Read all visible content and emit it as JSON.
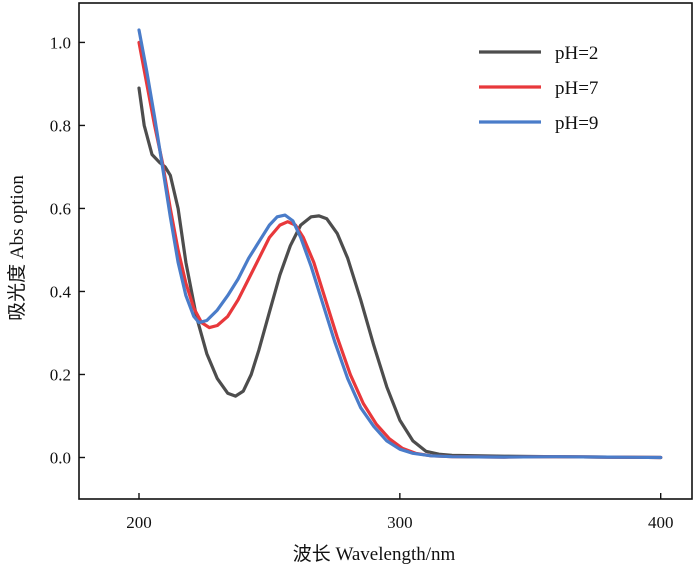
{
  "chart_data": {
    "type": "line",
    "xlabel": "波长 Wavelength/nm",
    "ylabel": "吸光度 Abs option",
    "xlim": [
      177,
      412
    ],
    "ylim": [
      -0.1,
      1.095
    ],
    "xticks": [
      200,
      300,
      400
    ],
    "xtick_labels": [
      "200",
      "300",
      "400"
    ],
    "yticks": [
      0.0,
      0.2,
      0.4,
      0.6,
      0.8,
      1.0
    ],
    "ytick_labels": [
      "0.0",
      "0.2",
      "0.4",
      "0.6",
      "0.8",
      "1.0"
    ],
    "grid": false,
    "legend_position": "top-right",
    "series": [
      {
        "name": "pH=2",
        "color": "#4d4d4d",
        "points": [
          [
            200,
            0.89
          ],
          [
            202,
            0.8
          ],
          [
            205,
            0.73
          ],
          [
            208,
            0.71
          ],
          [
            210,
            0.7
          ],
          [
            212,
            0.68
          ],
          [
            215,
            0.6
          ],
          [
            218,
            0.47
          ],
          [
            222,
            0.34
          ],
          [
            226,
            0.25
          ],
          [
            230,
            0.19
          ],
          [
            234,
            0.155
          ],
          [
            237,
            0.148
          ],
          [
            240,
            0.16
          ],
          [
            243,
            0.2
          ],
          [
            246,
            0.26
          ],
          [
            250,
            0.35
          ],
          [
            254,
            0.44
          ],
          [
            258,
            0.51
          ],
          [
            262,
            0.56
          ],
          [
            266,
            0.58
          ],
          [
            269,
            0.582
          ],
          [
            272,
            0.575
          ],
          [
            276,
            0.54
          ],
          [
            280,
            0.48
          ],
          [
            285,
            0.38
          ],
          [
            290,
            0.27
          ],
          [
            295,
            0.17
          ],
          [
            300,
            0.09
          ],
          [
            305,
            0.04
          ],
          [
            310,
            0.015
          ],
          [
            315,
            0.008
          ],
          [
            320,
            0.005
          ],
          [
            340,
            0.003
          ],
          [
            360,
            0.002
          ],
          [
            380,
            0.001
          ],
          [
            400,
            0.0
          ]
        ]
      },
      {
        "name": "pH=7",
        "color": "#e8383b",
        "points": [
          [
            200,
            1.0
          ],
          [
            203,
            0.9
          ],
          [
            206,
            0.8
          ],
          [
            209,
            0.71
          ],
          [
            212,
            0.6
          ],
          [
            215,
            0.5
          ],
          [
            218,
            0.42
          ],
          [
            221,
            0.36
          ],
          [
            224,
            0.325
          ],
          [
            227,
            0.313
          ],
          [
            230,
            0.318
          ],
          [
            234,
            0.34
          ],
          [
            238,
            0.38
          ],
          [
            242,
            0.43
          ],
          [
            246,
            0.48
          ],
          [
            250,
            0.53
          ],
          [
            254,
            0.56
          ],
          [
            257,
            0.568
          ],
          [
            260,
            0.56
          ],
          [
            263,
            0.53
          ],
          [
            267,
            0.47
          ],
          [
            271,
            0.39
          ],
          [
            276,
            0.29
          ],
          [
            281,
            0.2
          ],
          [
            286,
            0.13
          ],
          [
            291,
            0.08
          ],
          [
            296,
            0.045
          ],
          [
            301,
            0.022
          ],
          [
            306,
            0.01
          ],
          [
            312,
            0.004
          ],
          [
            320,
            0.002
          ],
          [
            340,
            0.001
          ],
          [
            360,
            0.002
          ],
          [
            380,
            0.001
          ],
          [
            400,
            0.0
          ]
        ]
      },
      {
        "name": "pH=9",
        "color": "#4a7cc9",
        "points": [
          [
            200,
            1.03
          ],
          [
            203,
            0.93
          ],
          [
            206,
            0.82
          ],
          [
            209,
            0.7
          ],
          [
            212,
            0.58
          ],
          [
            215,
            0.47
          ],
          [
            218,
            0.39
          ],
          [
            221,
            0.34
          ],
          [
            223,
            0.325
          ],
          [
            226,
            0.33
          ],
          [
            230,
            0.355
          ],
          [
            234,
            0.39
          ],
          [
            238,
            0.43
          ],
          [
            242,
            0.48
          ],
          [
            246,
            0.52
          ],
          [
            250,
            0.56
          ],
          [
            253,
            0.58
          ],
          [
            256,
            0.584
          ],
          [
            259,
            0.57
          ],
          [
            262,
            0.53
          ],
          [
            266,
            0.46
          ],
          [
            270,
            0.38
          ],
          [
            275,
            0.28
          ],
          [
            280,
            0.19
          ],
          [
            285,
            0.12
          ],
          [
            290,
            0.075
          ],
          [
            295,
            0.04
          ],
          [
            300,
            0.02
          ],
          [
            305,
            0.01
          ],
          [
            312,
            0.004
          ],
          [
            320,
            0.002
          ],
          [
            340,
            0.001
          ],
          [
            360,
            0.002
          ],
          [
            380,
            0.001
          ],
          [
            400,
            0.0
          ]
        ]
      }
    ]
  }
}
